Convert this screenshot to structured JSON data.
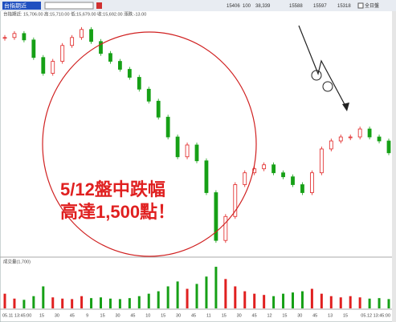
{
  "toolbar": {
    "symbol": "台指期近",
    "info": "台指期近: 15,706.00 高:15,710.00 低:15,679.00 收:15,692.00 漲跌:-13.00",
    "right": [
      "15406",
      "100",
      "38,339",
      "15588",
      "15597",
      "15318"
    ],
    "session": "全日盤"
  },
  "annotation": {
    "line1": "5/12盤中跌幅",
    "line2": "高達1,500點！"
  },
  "chart_data": {
    "type": "candlestick",
    "values": [
      15672,
      15700,
      15655,
      15532,
      15421,
      15505,
      15616,
      15672,
      15728,
      15644,
      15560,
      15505,
      15449,
      15393,
      15310,
      15226,
      15114,
      14975,
      14836,
      14919,
      14808,
      14585,
      14250,
      14418,
      14641,
      14724,
      14752,
      14780,
      14724,
      14696,
      14641,
      14585,
      14724,
      14891,
      14947,
      14975,
      14975,
      15031,
      14975,
      14947,
      14864
    ],
    "ylim": [
      14150,
      15800
    ],
    "up_color": "#e02020",
    "down_color": "#16a016",
    "volume_label": "成交量(1,700)",
    "volume": [
      600,
      400,
      350,
      500,
      900,
      450,
      400,
      380,
      500,
      420,
      450,
      400,
      380,
      420,
      500,
      600,
      700,
      900,
      1100,
      800,
      1000,
      1300,
      1700,
      1200,
      900,
      700,
      600,
      550,
      500,
      600,
      650,
      700,
      800,
      600,
      500,
      450,
      500,
      450,
      400,
      420,
      380
    ],
    "y2lim": [
      0,
      1800
    ],
    "x_start": "05.11 13:45:00",
    "x_end": "05.12 13:45:00",
    "x_labels": [
      "15",
      "30",
      "45",
      "9",
      "15",
      "30",
      "45",
      "10",
      "15",
      "30",
      "45",
      "11",
      "15",
      "30",
      "45",
      "12",
      "15",
      "30",
      "45",
      "13",
      "15"
    ]
  }
}
